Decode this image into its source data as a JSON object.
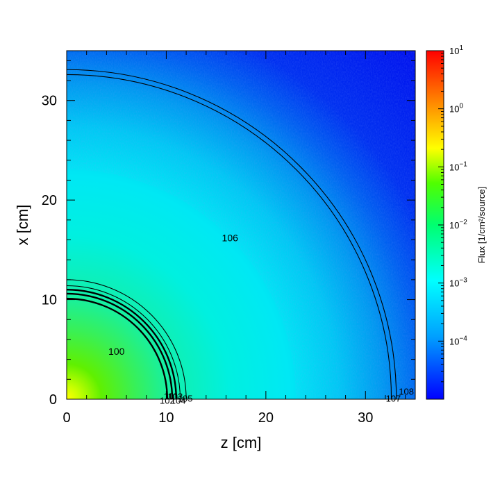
{
  "chart_data": {
    "type": "heatmap",
    "xlabel": "z [cm]",
    "ylabel": "x [cm]",
    "xlim": [
      0,
      35
    ],
    "ylim": [
      0,
      35
    ],
    "xticks": [
      0,
      10,
      20,
      30
    ],
    "yticks": [
      0,
      10,
      20,
      30
    ],
    "grid": false,
    "colorbar": {
      "label": "Flux [1/cm²/source]",
      "scale": "log",
      "range": [
        1e-05,
        10
      ],
      "ticks": [
        {
          "value": 10,
          "label": "10",
          "exp": "1"
        },
        {
          "value": 1,
          "label": "10",
          "exp": "0"
        },
        {
          "value": 0.1,
          "label": "10",
          "exp": "−1"
        },
        {
          "value": 0.01,
          "label": "10",
          "exp": "−2"
        },
        {
          "value": 0.001,
          "label": "10",
          "exp": "−3"
        },
        {
          "value": 0.0001,
          "label": "10",
          "exp": "−4"
        }
      ],
      "colors": [
        "#0000ff",
        "#00a0ff",
        "#00ffff",
        "#00ff70",
        "#50ff00",
        "#ffff00",
        "#ff8000",
        "#ff0000"
      ]
    },
    "flux_field": {
      "center": [
        0,
        0
      ],
      "description_values": [
        {
          "r": 0,
          "flux": 0.05
        },
        {
          "r": 5,
          "flux": 0.004
        },
        {
          "r": 10,
          "flux": 0.0015
        },
        {
          "r": 20,
          "flux": 0.0004
        },
        {
          "r": 30,
          "flux": 8e-05
        },
        {
          "r": 35,
          "flux": 2e-05
        }
      ]
    },
    "boundaries": [
      {
        "radius": 10.1,
        "weight": "heavy"
      },
      {
        "radius": 10.6,
        "weight": "heavy"
      },
      {
        "radius": 11.0,
        "weight": "heavy"
      },
      {
        "radius": 11.4,
        "weight": "light"
      },
      {
        "radius": 12.0,
        "weight": "light"
      },
      {
        "radius": 32.6,
        "weight": "light"
      },
      {
        "radius": 33.1,
        "weight": "light"
      }
    ],
    "region_labels": [
      {
        "text": "100",
        "z": 5.0,
        "x": 4.8,
        "size": "normal"
      },
      {
        "text": "106",
        "z": 16.4,
        "x": 16.2,
        "size": "normal"
      },
      {
        "text": "101",
        "z": 10.5,
        "x": 0.3,
        "size": "small"
      },
      {
        "text": "102",
        "z": 10.1,
        "x": -0.1,
        "size": "small"
      },
      {
        "text": "103",
        "z": 10.9,
        "x": 0.3,
        "size": "small"
      },
      {
        "text": "104",
        "z": 11.2,
        "x": -0.1,
        "size": "small"
      },
      {
        "text": "105",
        "z": 11.9,
        "x": 0.1,
        "size": "small"
      },
      {
        "text": "107",
        "z": 32.8,
        "x": 0.1,
        "size": "small"
      },
      {
        "text": "108",
        "z": 34.1,
        "x": 0.8,
        "size": "small"
      }
    ]
  }
}
